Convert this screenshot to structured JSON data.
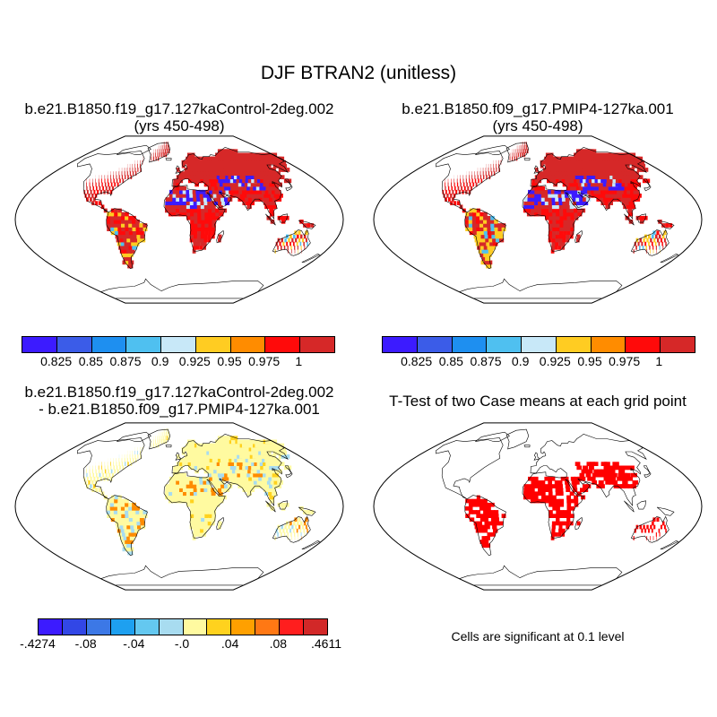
{
  "title": "DJF BTRAN2 (unitless)",
  "panels": [
    {
      "title_line1": "b.e21.B1850.f19_g17.127kaControl-2deg.002",
      "title_line2": "(yrs 450-498)"
    },
    {
      "title_line1": "b.e21.B1850.f09_g17.PMIP4-127ka.001",
      "title_line2": "(yrs 450-498)"
    },
    {
      "title_line1": "b.e21.B1850.f19_g17.127kaControl-2deg.002",
      "title_line2": "- b.e21.B1850.f09_g17.PMIP4-127ka.001"
    },
    {
      "title_line1": "T-Test of two Case means at each grid point",
      "title_line2": ""
    }
  ],
  "colorbar_top": {
    "colors": [
      "#3c1bff",
      "#3b5ce8",
      "#1e8ff0",
      "#4fc0f0",
      "#c8e8f8",
      "#ffcc22",
      "#ff8c00",
      "#ff0a0a",
      "#d62828"
    ],
    "labels": [
      "0.825",
      "0.85",
      "0.875",
      "0.9",
      "0.925",
      "0.95",
      "0.975",
      "1"
    ]
  },
  "colorbar_diff": {
    "colors": [
      "#3c1bff",
      "#3247e6",
      "#3c78e6",
      "#1ea0f0",
      "#64c8f0",
      "#a8dcf0",
      "#fffaa0",
      "#ffd21e",
      "#ffa000",
      "#ff7814",
      "#ff1e1e",
      "#d22828"
    ],
    "labels": [
      ".4274",
      ".08",
      ".04",
      ".0",
      ".04",
      ".08",
      ".4611"
    ],
    "label_signs": [
      "-",
      "-",
      "-",
      "-",
      "",
      "",
      ""
    ]
  },
  "significance_note": "Cells are significant at 0.1 level",
  "map_colors": {
    "ocean": "#ffffff",
    "coast": "#000000",
    "bt_high": "#d62828",
    "bt_mid": "#ff0a0a",
    "bt_low": "#ffcc22",
    "bt_vlow": "#3c1bff",
    "diff_base": "#fffaa0",
    "diff_neg": "#a8dcf0",
    "diff_pos": "#ff8c00",
    "sig": "#ff0000"
  }
}
